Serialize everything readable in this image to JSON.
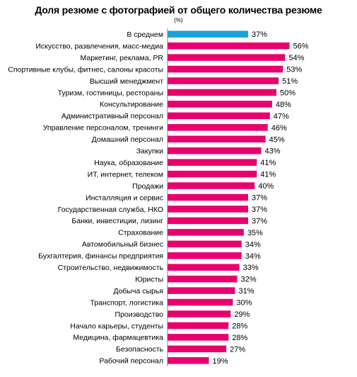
{
  "chart_data": {
    "type": "bar",
    "orientation": "horizontal",
    "title": "Доля резюме с фотографией от общего количества резюме",
    "subtitle": "(%)",
    "value_suffix": "%",
    "highlight_color": "#1aa3d9",
    "bar_color": "#e8006f",
    "categories": [
      "В среднем",
      "Искусство, развлечения, масс-медиа",
      "Маркетинг, реклама, PR",
      "Спортивные клубы, фитнес, салоны красоты",
      "Высший менеджмент",
      "Туризм, гостиницы, рестораны",
      "Консультирование",
      "Административный персонал",
      "Управление персоналом, тренинги",
      "Домашний персонал",
      "Закупки",
      "Наука, образование",
      "ИТ, интернет, телеком",
      "Продажи",
      "Инсталляция и сервис",
      "Государственная служба, НКО",
      "Банки, инвестиции, лизинг",
      "Страхование",
      "Автомобильный бизнес",
      "Бухгалтерия, финансы предприятия",
      "Строительство, недвижимость",
      "Юристы",
      "Добыча сырья",
      "Транспорт, логистика",
      "Производство",
      "Начало карьеры, студенты",
      "Медицина, фармацевтика",
      "Безопасность",
      "Рабочий персонал"
    ],
    "values": [
      37,
      56,
      54,
      53,
      51,
      50,
      48,
      47,
      46,
      45,
      43,
      41,
      41,
      40,
      37,
      37,
      37,
      35,
      34,
      34,
      33,
      32,
      31,
      30,
      29,
      28,
      28,
      27,
      19
    ],
    "highlight_index": 0,
    "xlim": [
      0,
      62
    ],
    "grid": false,
    "legend": "none"
  }
}
